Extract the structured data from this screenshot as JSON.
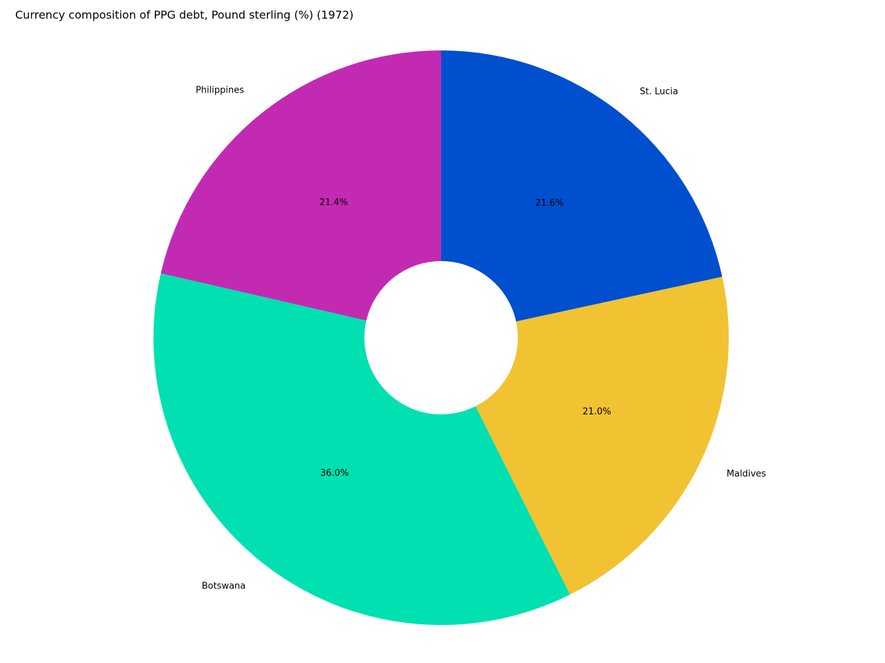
{
  "chart_data": {
    "type": "pie",
    "title": "Currency composition of PPG debt, Pound sterling (%) (1972)",
    "donut": true,
    "start_angle_deg": 90,
    "direction": "clockwise",
    "legend": "none",
    "slices": [
      {
        "label": "St. Lucia",
        "value": 21.6,
        "pct_label": "21.6%",
        "color": "#004fce"
      },
      {
        "label": "Maldives",
        "value": 21.0,
        "pct_label": "21.0%",
        "color": "#f1c232"
      },
      {
        "label": "Botswana",
        "value": 36.0,
        "pct_label": "36.0%",
        "color": "#00e0b0"
      },
      {
        "label": "Philippines",
        "value": 21.4,
        "pct_label": "21.4%",
        "color": "#c22ab2"
      }
    ]
  }
}
